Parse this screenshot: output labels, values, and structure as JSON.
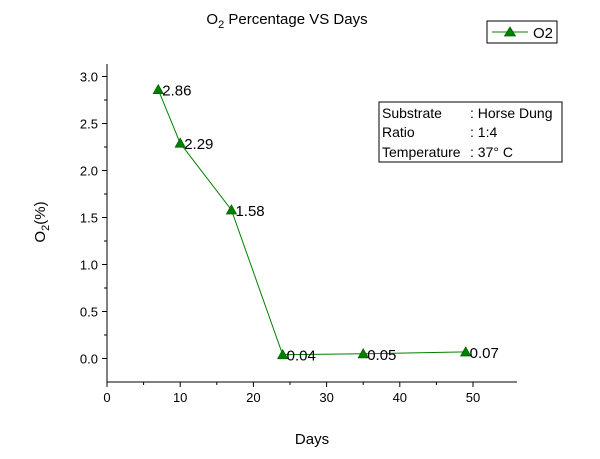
{
  "chart_data": {
    "type": "line",
    "title": {
      "prefix": "O",
      "subscript": "2",
      "suffix": " Percentage VS Days"
    },
    "xlabel": "Days",
    "ylabel": {
      "prefix": "O",
      "subscript": "2",
      "suffix": "(%)"
    },
    "x": [
      7,
      10,
      17,
      24,
      35,
      49
    ],
    "series": [
      {
        "name": "O2",
        "values": [
          2.86,
          2.29,
          1.58,
          0.04,
          0.05,
          0.07
        ],
        "data_labels": [
          "2.86",
          "2.29",
          "1.58",
          "0.04",
          "0.05",
          "0.07"
        ],
        "color": "#008000",
        "marker": "triangle-up"
      }
    ],
    "xlim": [
      0,
      55
    ],
    "ylim": [
      -0.25,
      3.25
    ],
    "x_ticks": [
      0,
      10,
      20,
      30,
      40,
      50
    ],
    "x_tick_labels": [
      "0",
      "10",
      "20",
      "30",
      "40",
      "50"
    ],
    "y_ticks": [
      0.0,
      0.5,
      1.0,
      1.5,
      2.0,
      2.5,
      3.0
    ],
    "y_tick_labels": [
      "0.0",
      "0.5",
      "1.0",
      "1.5",
      "2.0",
      "2.5",
      "3.0"
    ],
    "grid": false,
    "legend_position": "top-right",
    "annotation": {
      "rows": [
        {
          "label": "Substrate",
          "value": ": Horse Dung"
        },
        {
          "label": "Ratio",
          "value": ": 1:4"
        },
        {
          "label": "Temperature",
          "value": ": 37° C"
        }
      ]
    }
  }
}
